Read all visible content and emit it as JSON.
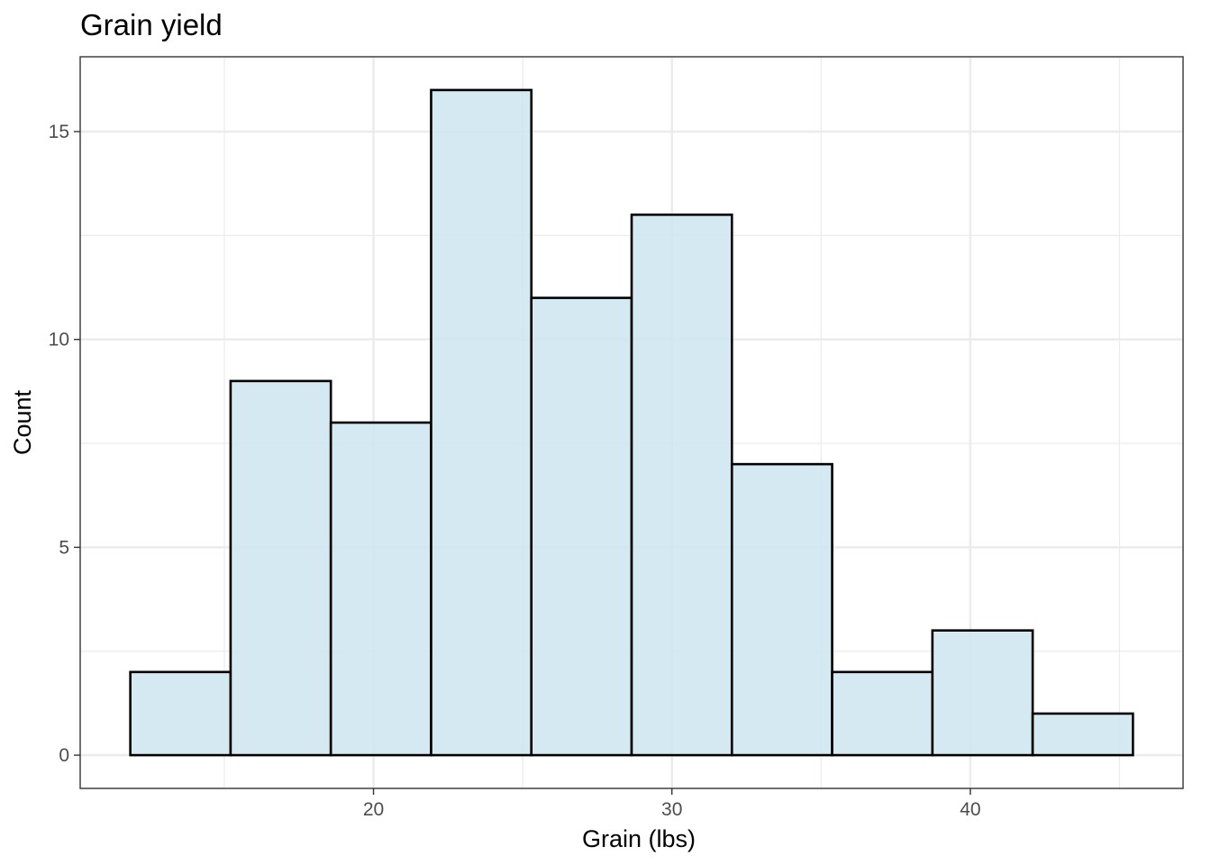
{
  "chart_data": {
    "type": "bar",
    "subtype": "histogram",
    "title": "Grain yield",
    "xlabel": "Grain (lbs)",
    "ylabel": "Count",
    "bins": [
      {
        "x0": 11.85,
        "x1": 15.21,
        "count": 2
      },
      {
        "x0": 15.21,
        "x1": 18.57,
        "count": 9
      },
      {
        "x0": 18.57,
        "x1": 21.93,
        "count": 8
      },
      {
        "x0": 21.93,
        "x1": 25.29,
        "count": 16
      },
      {
        "x0": 25.29,
        "x1": 28.65,
        "count": 11
      },
      {
        "x0": 28.65,
        "x1": 32.01,
        "count": 13
      },
      {
        "x0": 32.01,
        "x1": 35.37,
        "count": 7
      },
      {
        "x0": 35.37,
        "x1": 38.73,
        "count": 2
      },
      {
        "x0": 38.73,
        "x1": 42.09,
        "count": 3
      },
      {
        "x0": 42.09,
        "x1": 45.45,
        "count": 1
      }
    ],
    "xlim": [
      10.17,
      47.13
    ],
    "ylim": [
      -0.8,
      16.8
    ],
    "x_ticks": [
      20,
      30,
      40
    ],
    "x_minor_ticks": [
      15,
      25,
      35,
      45
    ],
    "y_ticks": [
      0,
      5,
      10,
      15
    ],
    "y_minor_ticks": [
      2.5,
      7.5,
      12.5
    ],
    "grid": true,
    "bar_fill": "#cfe7ef",
    "bar_outline": "#000000",
    "grid_color": "#ebebeb",
    "panel_border": "#333333"
  }
}
